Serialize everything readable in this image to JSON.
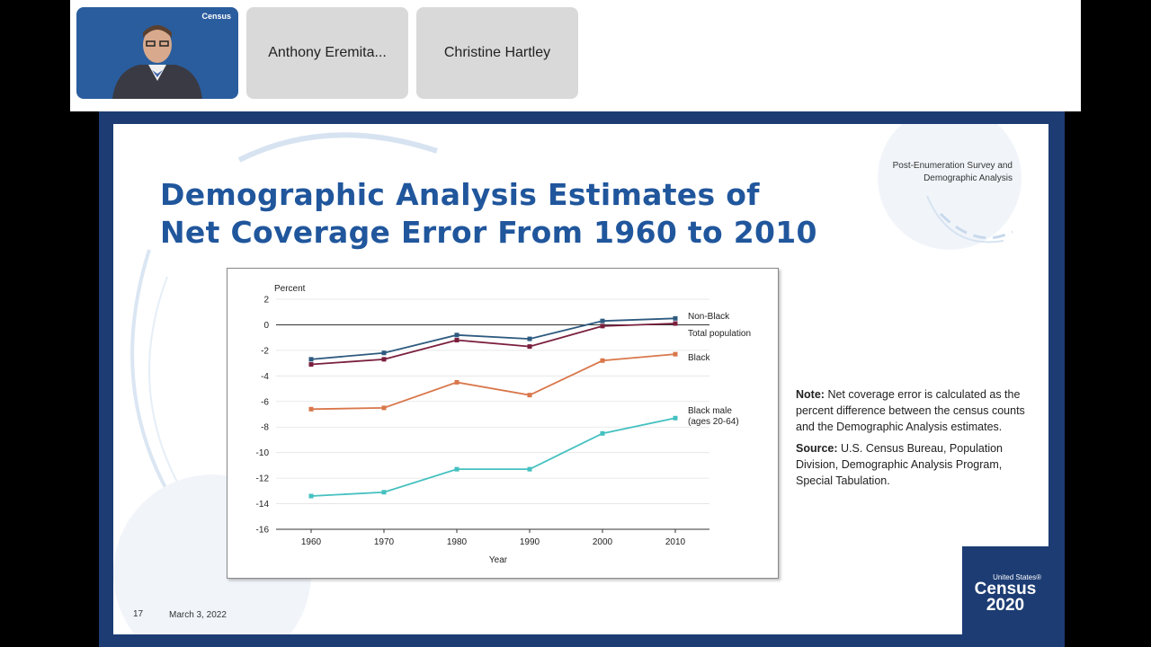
{
  "participants": [
    {
      "name": "",
      "type": "video"
    },
    {
      "name": "Anthony Eremita...",
      "type": "name"
    },
    {
      "name": "Christine Hartley",
      "type": "name"
    }
  ],
  "video_tile": {
    "logo_text": "Census"
  },
  "slide": {
    "title_line1": "Demographic Analysis Estimates of",
    "title_line2": "Net Coverage Error From 1960 to 2010",
    "corner_line1": "Post-Enumeration  Survey and",
    "corner_line2": "Demographic  Analysis",
    "note_label": "Note:",
    "note_text": "Net coverage error is calculated as the percent difference between the census counts and the Demographic Analysis estimates.",
    "source_label": "Source:",
    "source_text": "U.S. Census Bureau, Population Division, Demographic Analysis Program, Special Tabulation.",
    "page_number": "17",
    "date": "March 3, 2022",
    "logo_small": "United States®",
    "logo_census": "Census",
    "logo_year": "2020"
  },
  "colors": {
    "title": "#20569c",
    "frame": "#1c3c73",
    "non_black": "#2e5a7f",
    "total": "#7a1f3d",
    "black": "#d9774b",
    "black_male": "#45c0c0"
  },
  "chart_data": {
    "type": "line",
    "ylabel": "Percent",
    "xlabel": "Year",
    "x": [
      1960,
      1970,
      1980,
      1990,
      2000,
      2010
    ],
    "yticks": [
      2,
      0,
      -2,
      -4,
      -6,
      -8,
      -10,
      -12,
      -14,
      -16
    ],
    "ylim": [
      -16,
      2
    ],
    "series": [
      {
        "name": "Non-Black",
        "values": [
          -2.7,
          -2.2,
          -0.8,
          -1.1,
          0.3,
          0.5
        ],
        "color": "#2e5a7f"
      },
      {
        "name": "Total population",
        "values": [
          -3.1,
          -2.7,
          -1.2,
          -1.7,
          -0.1,
          0.1
        ],
        "color": "#7a1f3d"
      },
      {
        "name": "Black",
        "values": [
          -6.6,
          -6.5,
          -4.5,
          -5.5,
          -2.8,
          -2.3
        ],
        "color": "#d9774b"
      },
      {
        "name": "Black male (ages 20-64)",
        "label_line1": "Black male",
        "label_line2": "(ages 20-64)",
        "values": [
          -13.4,
          -13.1,
          -11.3,
          -11.3,
          -8.5,
          -7.3
        ],
        "color": "#45c0c0"
      }
    ]
  }
}
